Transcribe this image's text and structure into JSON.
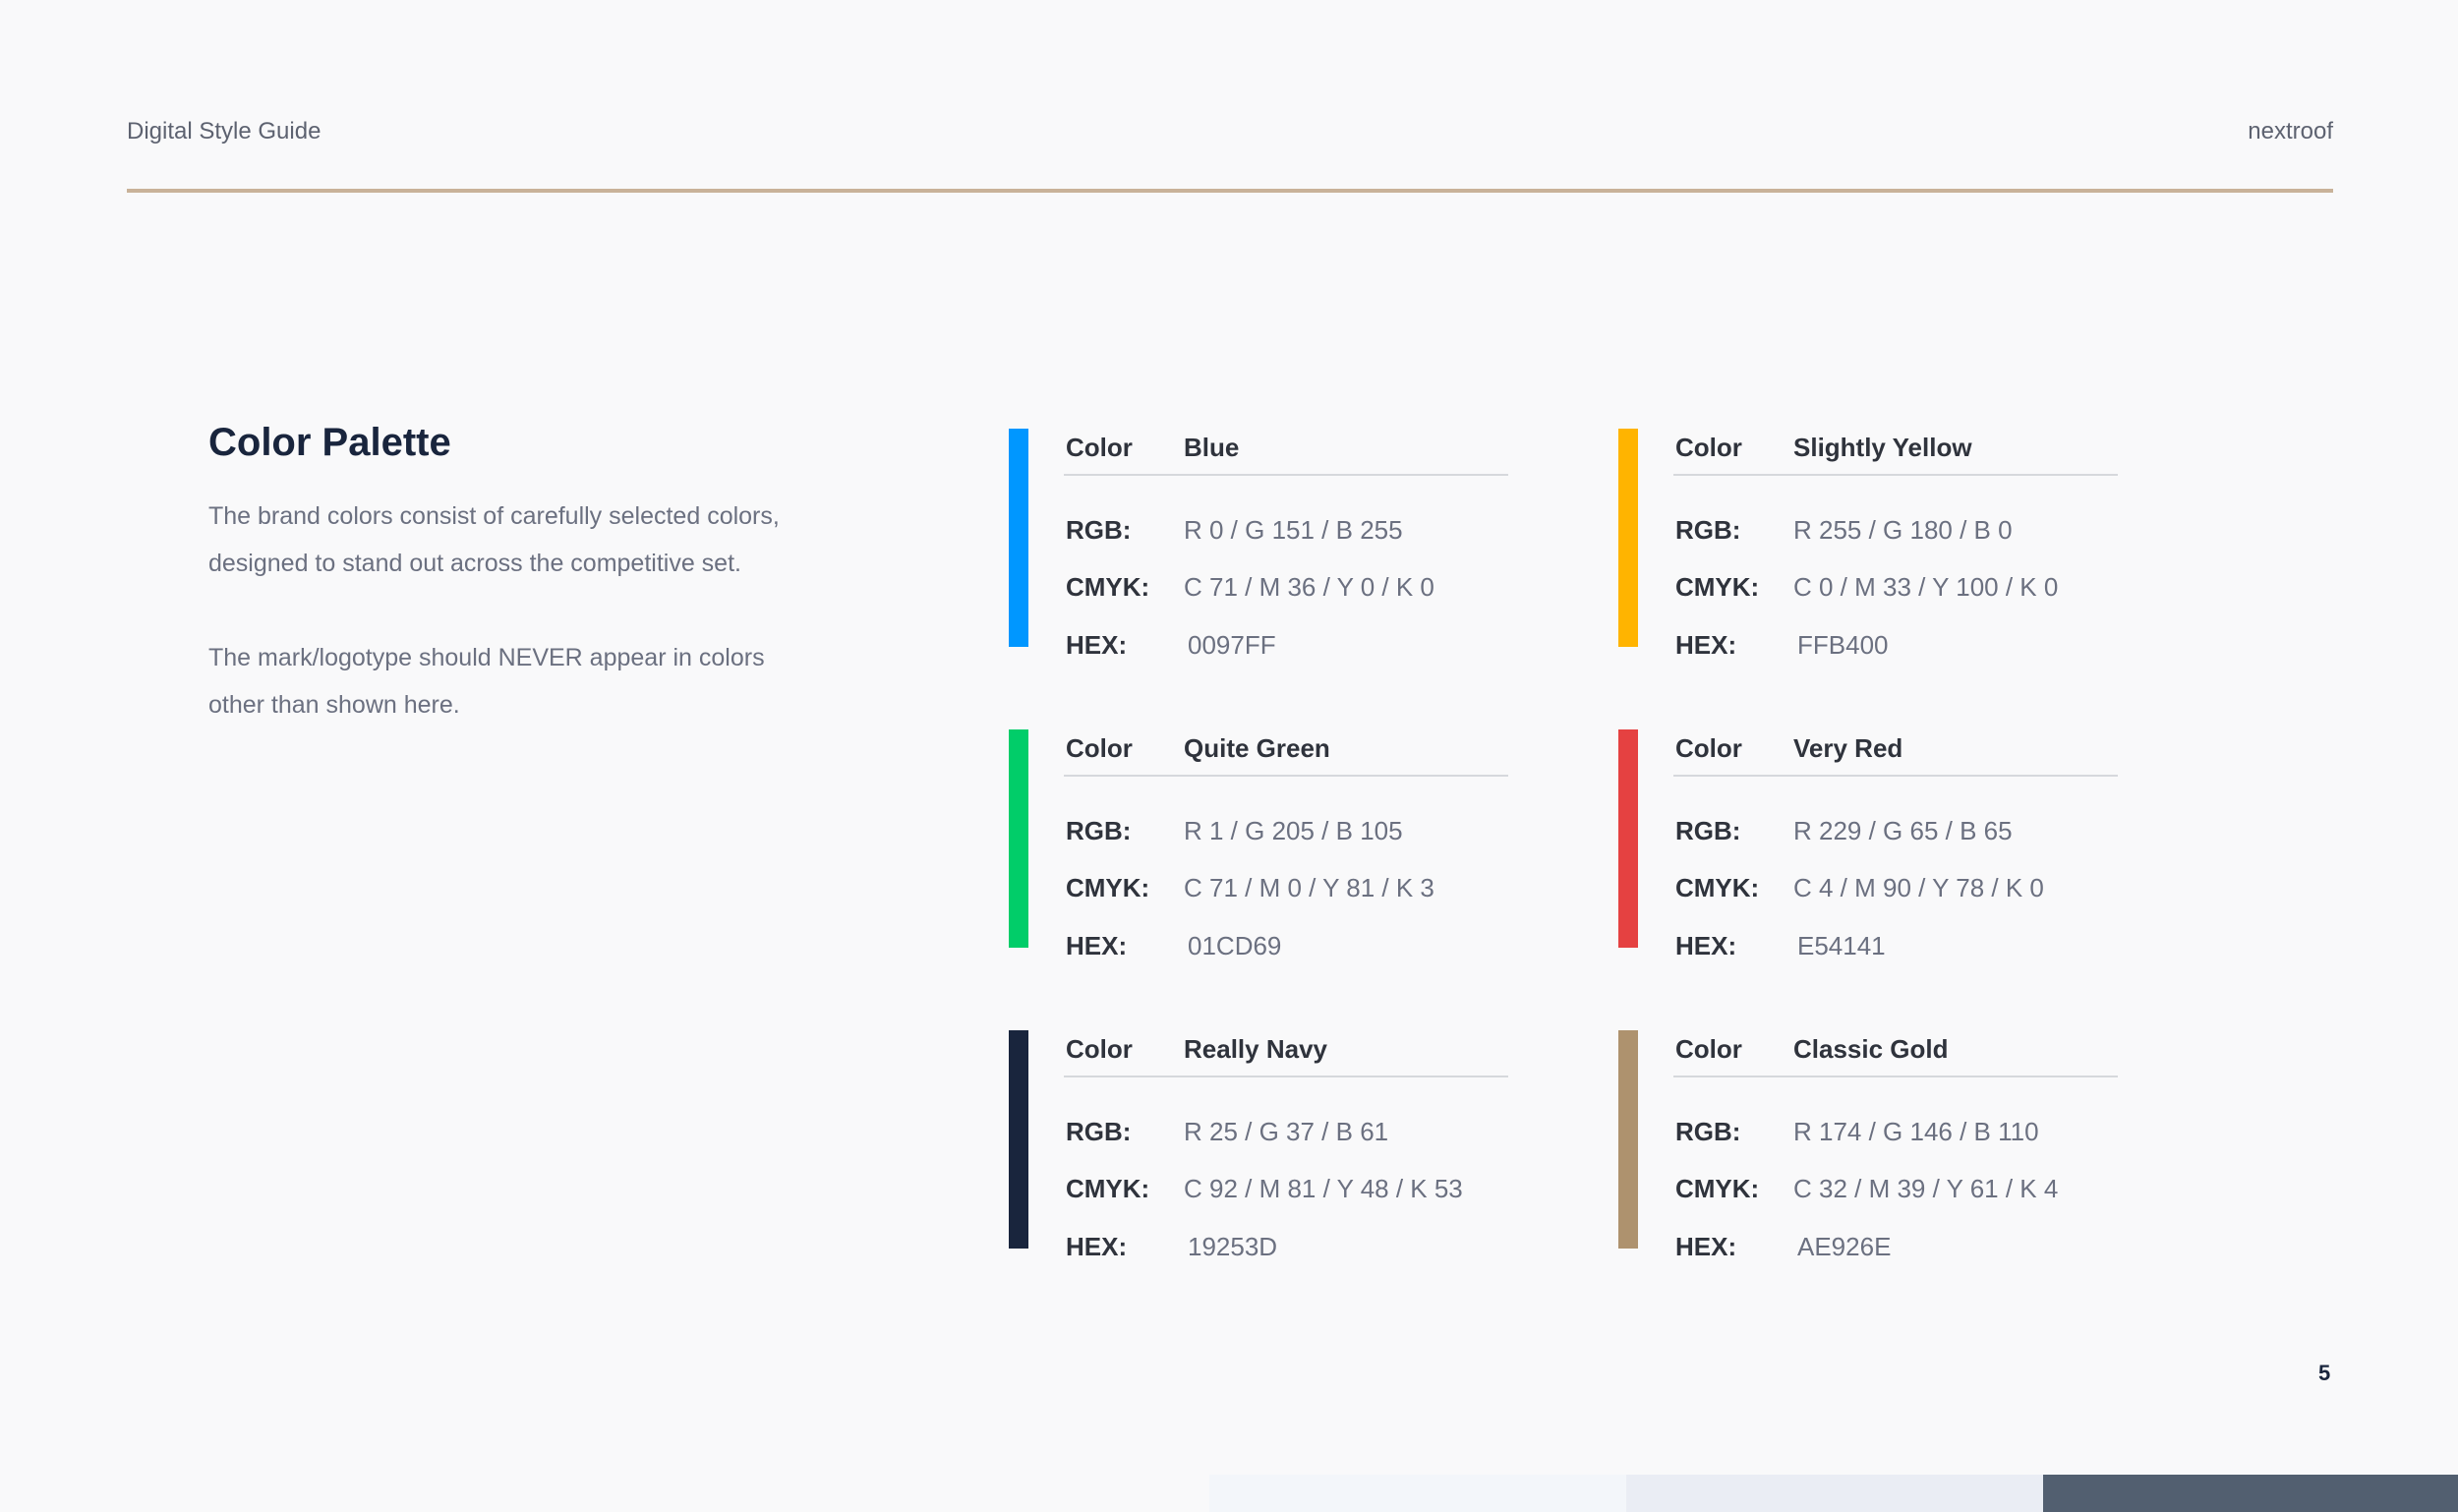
{
  "header": {
    "title": "Digital Style Guide",
    "brand": "nextroof"
  },
  "intro": {
    "heading": "Color Palette",
    "paragraph1": "The brand colors consist of carefully selected colors, designed to stand out across the competitive set.",
    "paragraph2": "The mark/logotype should NEVER appear in colors other than shown here."
  },
  "labels": {
    "color": "Color",
    "rgb": "RGB:",
    "cmyk": "CMYK:",
    "hex": "HEX:"
  },
  "colors": [
    {
      "name": "Blue",
      "rgb": "R 0 / G 151 / B 255",
      "cmyk": "C 71 / M 36 / Y 0 / K 0",
      "hex": "0097FF",
      "swatch": "#0097FF"
    },
    {
      "name": "Slightly Yellow",
      "rgb": "R 255 / G 180 / B 0",
      "cmyk": "C 0 / M 33 / Y 100 / K 0",
      "hex": "FFB400",
      "swatch": "#FFB400"
    },
    {
      "name": "Quite Green",
      "rgb": "R 1 / G 205 / B 105",
      "cmyk": "C 71 / M 0 / Y 81 / K 3",
      "hex": "01CD69",
      "swatch": "#01CD69"
    },
    {
      "name": "Very Red",
      "rgb": "R 229 / G 65 / B 65",
      "cmyk": "C 4 / M 90 / Y 78 / K 0",
      "hex": "E54141",
      "swatch": "#E54141"
    },
    {
      "name": "Really Navy",
      "rgb": "R 25 / G 37 / B 61",
      "cmyk": "C 92 / M 81 / Y 48 / K 53",
      "hex": "19253D",
      "swatch": "#19253D"
    },
    {
      "name": "Classic Gold",
      "rgb": "R 174 / G 146 / B 110",
      "cmyk": "C 32 / M 39 / Y 61 / K 4",
      "hex": "AE926E",
      "swatch": "#AE926E"
    }
  ],
  "page_number": "5"
}
